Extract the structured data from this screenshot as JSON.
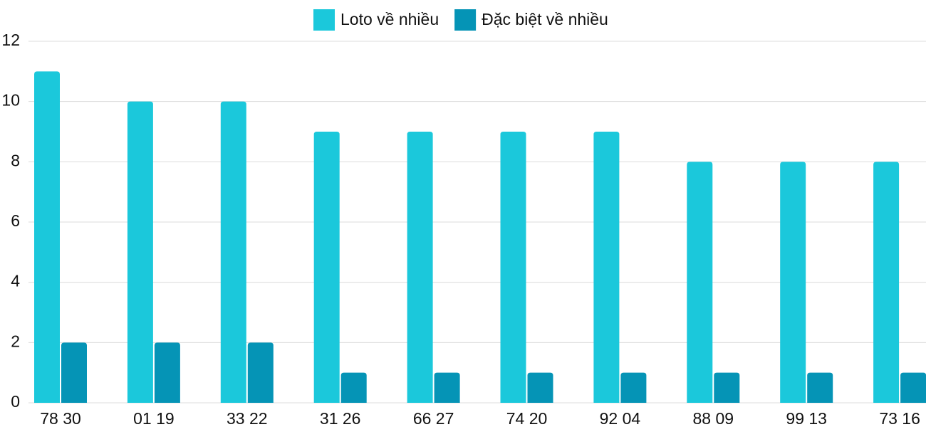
{
  "chart_data": {
    "type": "bar",
    "categories": [
      "78 30",
      "01 19",
      "33 22",
      "31 26",
      "66 27",
      "74 20",
      "92 04",
      "88 09",
      "99 13",
      "73 16"
    ],
    "series": [
      {
        "name": "Loto về nhiều",
        "color": "#1bc8db",
        "values": [
          11,
          10,
          10,
          9,
          9,
          9,
          9,
          8,
          8,
          8
        ]
      },
      {
        "name": "Đặc biệt về nhiều",
        "color": "#0594b6",
        "values": [
          2,
          2,
          2,
          1,
          1,
          1,
          1,
          1,
          1,
          1
        ]
      }
    ],
    "ylim": [
      0,
      12
    ],
    "yticks": [
      0,
      2,
      4,
      6,
      8,
      10,
      12
    ],
    "grid": true,
    "legend": "top"
  }
}
